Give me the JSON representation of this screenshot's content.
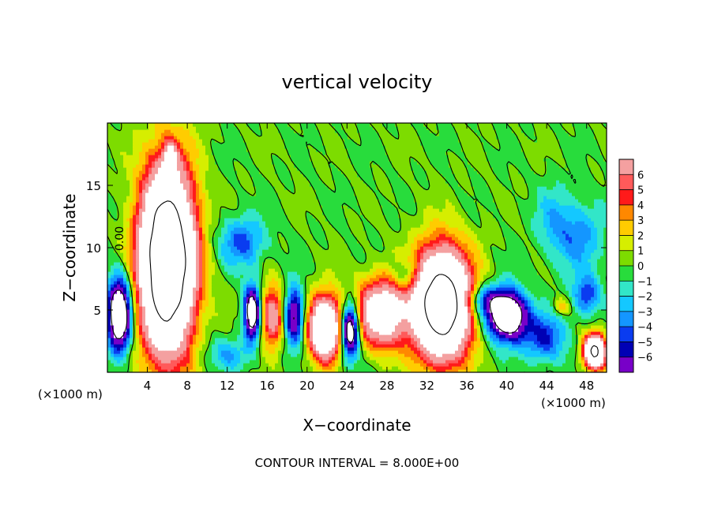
{
  "chart_data": {
    "type": "heatmap",
    "title": "vertical velocity",
    "xlabel": "X−coordinate",
    "ylabel": "Z−coordinate",
    "x_unit_left": "(×1000 m)",
    "x_unit_right": "(×1000 m)",
    "footer": "CONTOUR INTERVAL = 8.000E+00",
    "contour_label": "0.00",
    "xlim": [
      0,
      50
    ],
    "ylim": [
      0,
      20
    ],
    "x_ticks": [
      4,
      8,
      12,
      16,
      20,
      24,
      28,
      32,
      36,
      40,
      44,
      48
    ],
    "x_tick_labels": [
      "4",
      "8",
      "12",
      "16",
      "20",
      "24",
      "28",
      "32",
      "36",
      "40",
      "44",
      "48"
    ],
    "y_ticks": [
      5,
      10,
      15
    ],
    "y_tick_labels": [
      "5",
      "10",
      "15"
    ],
    "colorbar": {
      "levels": [
        6,
        5,
        4,
        3,
        2,
        1,
        0,
        -1,
        -2,
        -3,
        -4,
        -5,
        -6
      ],
      "labels": [
        "6",
        "5",
        "4",
        "3",
        "2",
        "1",
        "0",
        "−1",
        "−2",
        "−3",
        "−4",
        "−5",
        "−6"
      ],
      "colors": [
        "#f4a0a0",
        "#ff5a5a",
        "#ff1a1a",
        "#ff8800",
        "#ffcc00",
        "#d6ee00",
        "#7ddc00",
        "#28dc3c",
        "#32e6c8",
        "#14c8ff",
        "#1496ff",
        "#0a3cf0",
        "#0000b4",
        "#7800c8"
      ]
    },
    "background_color": "#5ce040",
    "features": [
      {
        "kind": "updraft",
        "x": 6.0,
        "z": 9.0,
        "rx": 3.0,
        "rz": 8.0,
        "w": 25
      },
      {
        "kind": "updraft",
        "x": 6.3,
        "z": 17.2,
        "rx": 0.7,
        "rz": 1.5,
        "w": 7
      },
      {
        "kind": "updraft",
        "x": 33.5,
        "z": 5.5,
        "rx": 3.2,
        "rz": 4.8,
        "w": 22
      },
      {
        "kind": "updraft",
        "x": 21.8,
        "z": 3.6,
        "rx": 1.8,
        "rz": 2.8,
        "w": 16
      },
      {
        "kind": "updraft",
        "x": 27.5,
        "z": 4.8,
        "rx": 2.8,
        "rz": 3.0,
        "w": 12
      },
      {
        "kind": "updraft",
        "x": 16.5,
        "z": 4.5,
        "rx": 1.3,
        "rz": 2.8,
        "w": 8
      },
      {
        "kind": "updraft",
        "x": 48.8,
        "z": 1.7,
        "rx": 1.2,
        "rz": 1.5,
        "w": 18
      },
      {
        "kind": "downdraft",
        "x": 1.2,
        "z": 4.7,
        "rx": 1.3,
        "rz": 3.3,
        "w": -14
      },
      {
        "kind": "downdraft",
        "x": 14.5,
        "z": 4.8,
        "rx": 0.9,
        "rz": 2.4,
        "w": -12
      },
      {
        "kind": "downdraft",
        "x": 13.5,
        "z": 10.5,
        "rx": 2.6,
        "rz": 2.2,
        "w": -4.5
      },
      {
        "kind": "downdraft",
        "x": 24.3,
        "z": 3.4,
        "rx": 1.0,
        "rz": 2.4,
        "w": -13
      },
      {
        "kind": "downdraft",
        "x": 18.7,
        "z": 4.5,
        "rx": 1.1,
        "rz": 2.6,
        "w": -9
      },
      {
        "kind": "downdraft",
        "x": 40.0,
        "z": 4.6,
        "rx": 2.2,
        "rz": 2.2,
        "w": -14
      },
      {
        "kind": "downdraft",
        "x": 37.5,
        "z": 5.8,
        "rx": 2.0,
        "rz": 1.4,
        "w": -5
      },
      {
        "kind": "downdraft",
        "x": 43.8,
        "z": 2.8,
        "rx": 2.5,
        "rz": 2.2,
        "w": -5
      },
      {
        "kind": "downdraft",
        "x": 47.0,
        "z": 11.0,
        "rx": 3.0,
        "rz": 3.2,
        "w": -3.6
      },
      {
        "kind": "downdraft",
        "x": 48.0,
        "z": 6.2,
        "rx": 1.5,
        "rz": 1.8,
        "w": -5
      },
      {
        "kind": "downdraft",
        "x": 30.0,
        "z": 7.8,
        "rx": 1.5,
        "rz": 1.4,
        "w": -4
      },
      {
        "kind": "downdraft",
        "x": 12.0,
        "z": 1.5,
        "rx": 2.5,
        "rz": 1.5,
        "w": -3
      },
      {
        "kind": "updraft",
        "x": 45.5,
        "z": 5.3,
        "rx": 0.9,
        "rz": 0.7,
        "w": 3.5
      },
      {
        "kind": "downdraft",
        "x": 44.5,
        "z": 12.5,
        "rx": 2.0,
        "rz": 3.0,
        "w": -1.8
      }
    ]
  }
}
